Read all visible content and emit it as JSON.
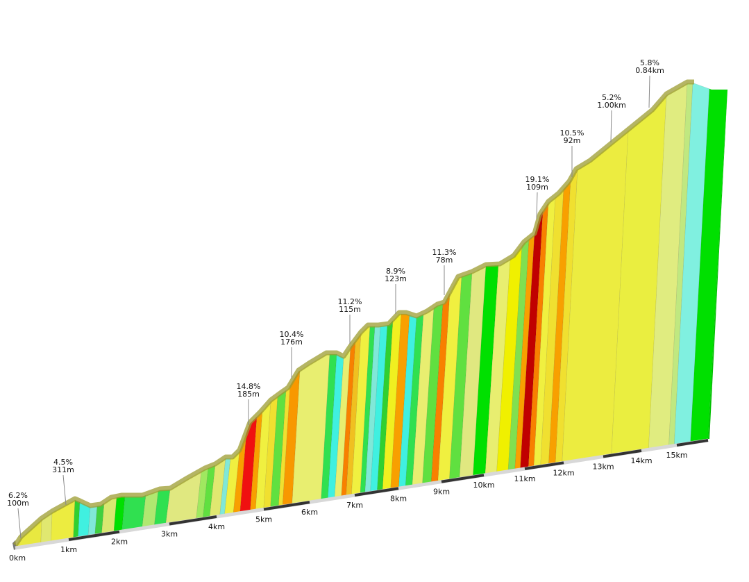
{
  "chart_data": {
    "type": "area",
    "title": "",
    "xlabel": "",
    "ylabel": "",
    "x_ticks": [
      "0km",
      "1km",
      "2km",
      "3km",
      "4km",
      "5km",
      "6km",
      "7km",
      "8km",
      "9km",
      "10km",
      "11km",
      "12km",
      "13km",
      "14km",
      "15km"
    ],
    "annotations": [
      {
        "km": 0.1,
        "gradient": "6.2%",
        "length": "100m"
      },
      {
        "km": 1.0,
        "gradient": "4.5%",
        "length": "311m"
      },
      {
        "km": 4.7,
        "gradient": "14.8%",
        "length": "185m"
      },
      {
        "km": 5.6,
        "gradient": "10.4%",
        "length": "176m"
      },
      {
        "km": 6.9,
        "gradient": "11.2%",
        "length": "115m"
      },
      {
        "km": 7.9,
        "gradient": "8.9%",
        "length": "123m"
      },
      {
        "km": 9.1,
        "gradient": "11.3%",
        "length": "78m"
      },
      {
        "km": 11.3,
        "gradient": "19.1%",
        "length": "109m"
      },
      {
        "km": 12.2,
        "gradient": "10.5%",
        "length": "92m"
      },
      {
        "km": 13.2,
        "gradient": "5.2%",
        "length": "1.00km"
      },
      {
        "km": 14.2,
        "gradient": "5.8%",
        "length": "0.84km"
      }
    ],
    "gradient_colors": {
      "descent": "#40f0e0",
      "flat": "#00e000",
      "easy": "#e0ec80",
      "moderate": "#ecec40",
      "hard": "#f8a000",
      "very_hard": "#f01010",
      "extreme": "#c00000"
    },
    "grid": false,
    "legend": "none"
  }
}
